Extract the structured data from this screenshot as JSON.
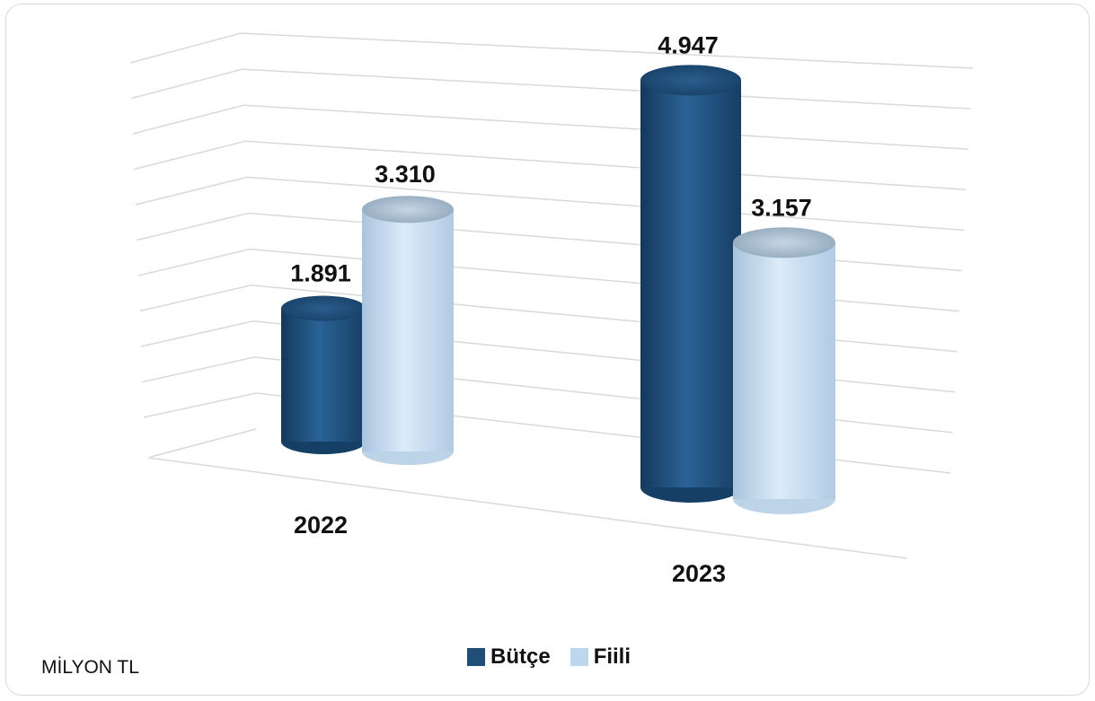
{
  "chart_data": {
    "type": "bar",
    "style": "3d-cylinder",
    "categories": [
      "2022",
      "2023"
    ],
    "series": [
      {
        "name": "Bütçe",
        "values": [
          1891,
          4947
        ],
        "labels": [
          "1.891",
          "4.947"
        ],
        "color": "#1f4e79"
      },
      {
        "name": "Fiili",
        "values": [
          3310,
          3157
        ],
        "labels": [
          "3.310",
          "3.157"
        ],
        "color": "#bdd7ee"
      }
    ],
    "unit_label": "MİLYON TL",
    "ylim": [
      0,
      5500
    ],
    "grid": true,
    "legend": "bottom-center"
  }
}
